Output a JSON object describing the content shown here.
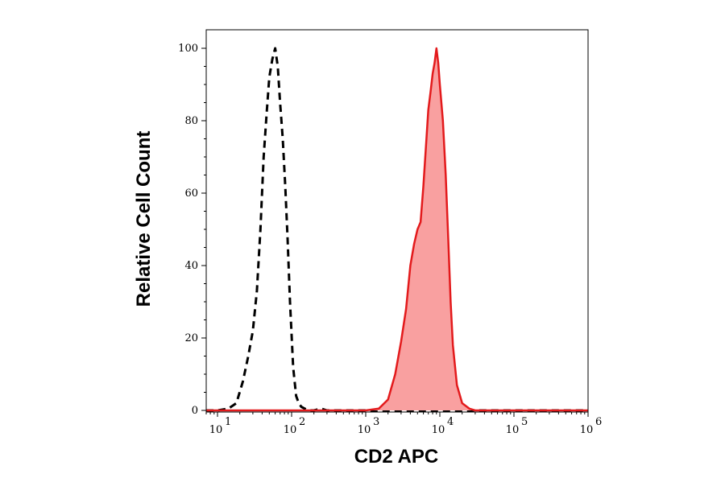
{
  "chart_data": {
    "type": "area",
    "title": "",
    "xlabel": "CD2 APC",
    "ylabel": "Relative Cell Count",
    "x_scale": "log",
    "xlim": [
      6.0,
      1000000
    ],
    "ylim": [
      0,
      100
    ],
    "y_ticks": [
      "0",
      "20",
      "40",
      "60",
      "80",
      "100"
    ],
    "x_ticks": [
      {
        "base": "10",
        "exp": "1",
        "value": 10
      },
      {
        "base": "10",
        "exp": "2",
        "value": 100
      },
      {
        "base": "10",
        "exp": "3",
        "value": 1000
      },
      {
        "base": "10",
        "exp": "4",
        "value": 10000
      },
      {
        "base": "10",
        "exp": "5",
        "value": 100000
      },
      {
        "base": "10",
        "exp": "6",
        "value": 1000000
      }
    ],
    "grid": false,
    "legend": "none",
    "series": [
      {
        "style": "dashed-line",
        "color": "#000000",
        "x": [
          6.0,
          10,
          14,
          18,
          22,
          26,
          30,
          34,
          38,
          42,
          46,
          50,
          55,
          60,
          65,
          70,
          76,
          82,
          88,
          95,
          105,
          115,
          125,
          135,
          150,
          170,
          200,
          250,
          300,
          400,
          1000000
        ],
        "y": [
          0,
          0,
          0.5,
          2,
          8,
          15,
          22,
          33,
          50,
          70,
          82,
          92,
          97,
          100,
          95,
          85,
          75,
          62,
          48,
          30,
          12,
          4,
          2,
          1,
          0.5,
          0,
          0,
          0.5,
          0,
          0,
          0
        ]
      },
      {
        "style": "filled-area",
        "color": "#e31a1c",
        "fill": "#f9a0a0",
        "x": [
          6.0,
          1000,
          1500,
          2000,
          2500,
          3000,
          3500,
          4000,
          4500,
          5000,
          5500,
          6000,
          6500,
          7000,
          7500,
          8000,
          8500,
          9000,
          9500,
          10000,
          11000,
          12000,
          13000,
          14000,
          15000,
          17000,
          20000,
          25000,
          30000,
          1000000
        ],
        "y": [
          0,
          0,
          0.5,
          3,
          10,
          19,
          28,
          40,
          46,
          50,
          52,
          62,
          73,
          83,
          88,
          93,
          96,
          100,
          96,
          90,
          80,
          65,
          47,
          30,
          18,
          7,
          2,
          0.5,
          0,
          0
        ]
      }
    ]
  }
}
